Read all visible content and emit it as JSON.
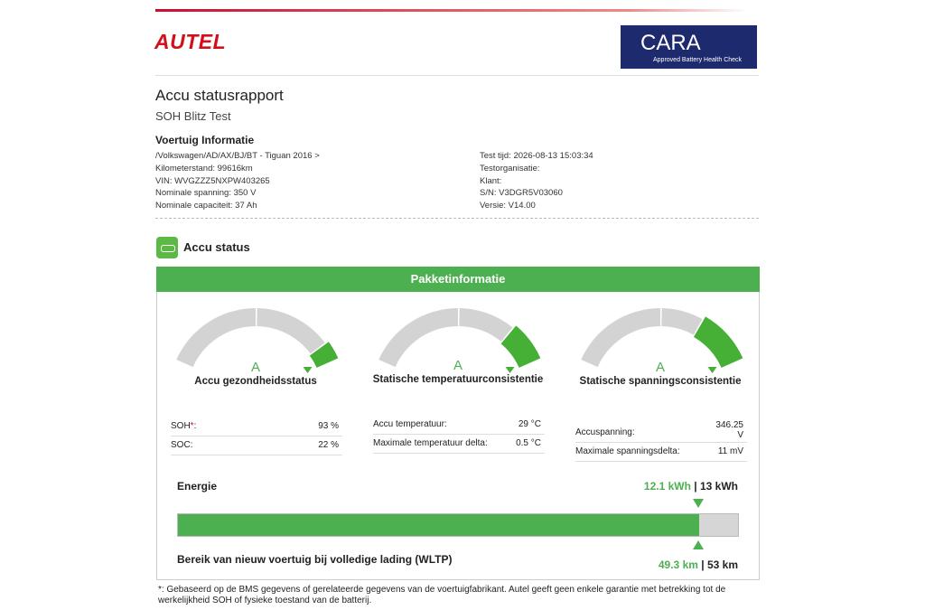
{
  "header": {
    "logo": "AUTEL",
    "badge": {
      "title": "CARA",
      "subtitle": "Approved Battery Health Check"
    }
  },
  "report": {
    "title": "Accu statusrapport",
    "subtitle": "SOH Blitz Test"
  },
  "vehicle": {
    "heading": "Voertuig Informatie",
    "left": [
      "/Volkswagen/AD/AX/BJ/BT - Tiguan 2016 >",
      "Kilometerstand: 99616km",
      "VIN: WVGZZZ5NXPW403265",
      "Nominale spanning: 350 V",
      "Nominale capaciteit: 37 Ah"
    ],
    "right": [
      "Test tijd: 2026-08-13 15:03:34",
      "Testorganisatie:",
      "Klant:",
      "S/N: V3DGR5V03060",
      "Versie: V14.00"
    ]
  },
  "status": {
    "heading": "Accu status",
    "panel_title": "Pakketinformatie",
    "gauges": [
      {
        "grade": "A",
        "label": "Accu gezondheidsstatus",
        "rows": [
          {
            "label": "SOH",
            "marker": "*",
            "suffix": ":",
            "value": "93 %"
          },
          {
            "label": "SOC:",
            "value": "22 %"
          }
        ]
      },
      {
        "grade": "A",
        "label": "Statische temperatuurconsistentie",
        "rows": [
          {
            "label": "Accu temperatuur:",
            "value": "29 °C"
          },
          {
            "label": "Maximale temperatuur delta:",
            "value": "0.5 °C"
          }
        ]
      },
      {
        "grade": "A",
        "label": "Statische spanningsconsistentie",
        "rows": [
          {
            "label": "Accuspanning:",
            "value": "346.25 V"
          },
          {
            "label": "Maximale spanningsdelta:",
            "value": "11 mV"
          }
        ]
      }
    ]
  },
  "energy": {
    "heading": "Energie",
    "current": "12.1 kWh",
    "separator": "|",
    "total": "13 kWh",
    "range_heading": "Bereik van nieuw voertuig bij volledige lading (WLTP)",
    "range_current": "49.3 km",
    "range_total": "53 km"
  },
  "footnote": "*: Gebaseerd op de BMS gegevens of gerelateerde gegevens van de voertuigfabrikant. Autel geeft geen enkele garantie met betrekking tot de werkelijkheid SOH of fysieke toestand van de batterij."
}
